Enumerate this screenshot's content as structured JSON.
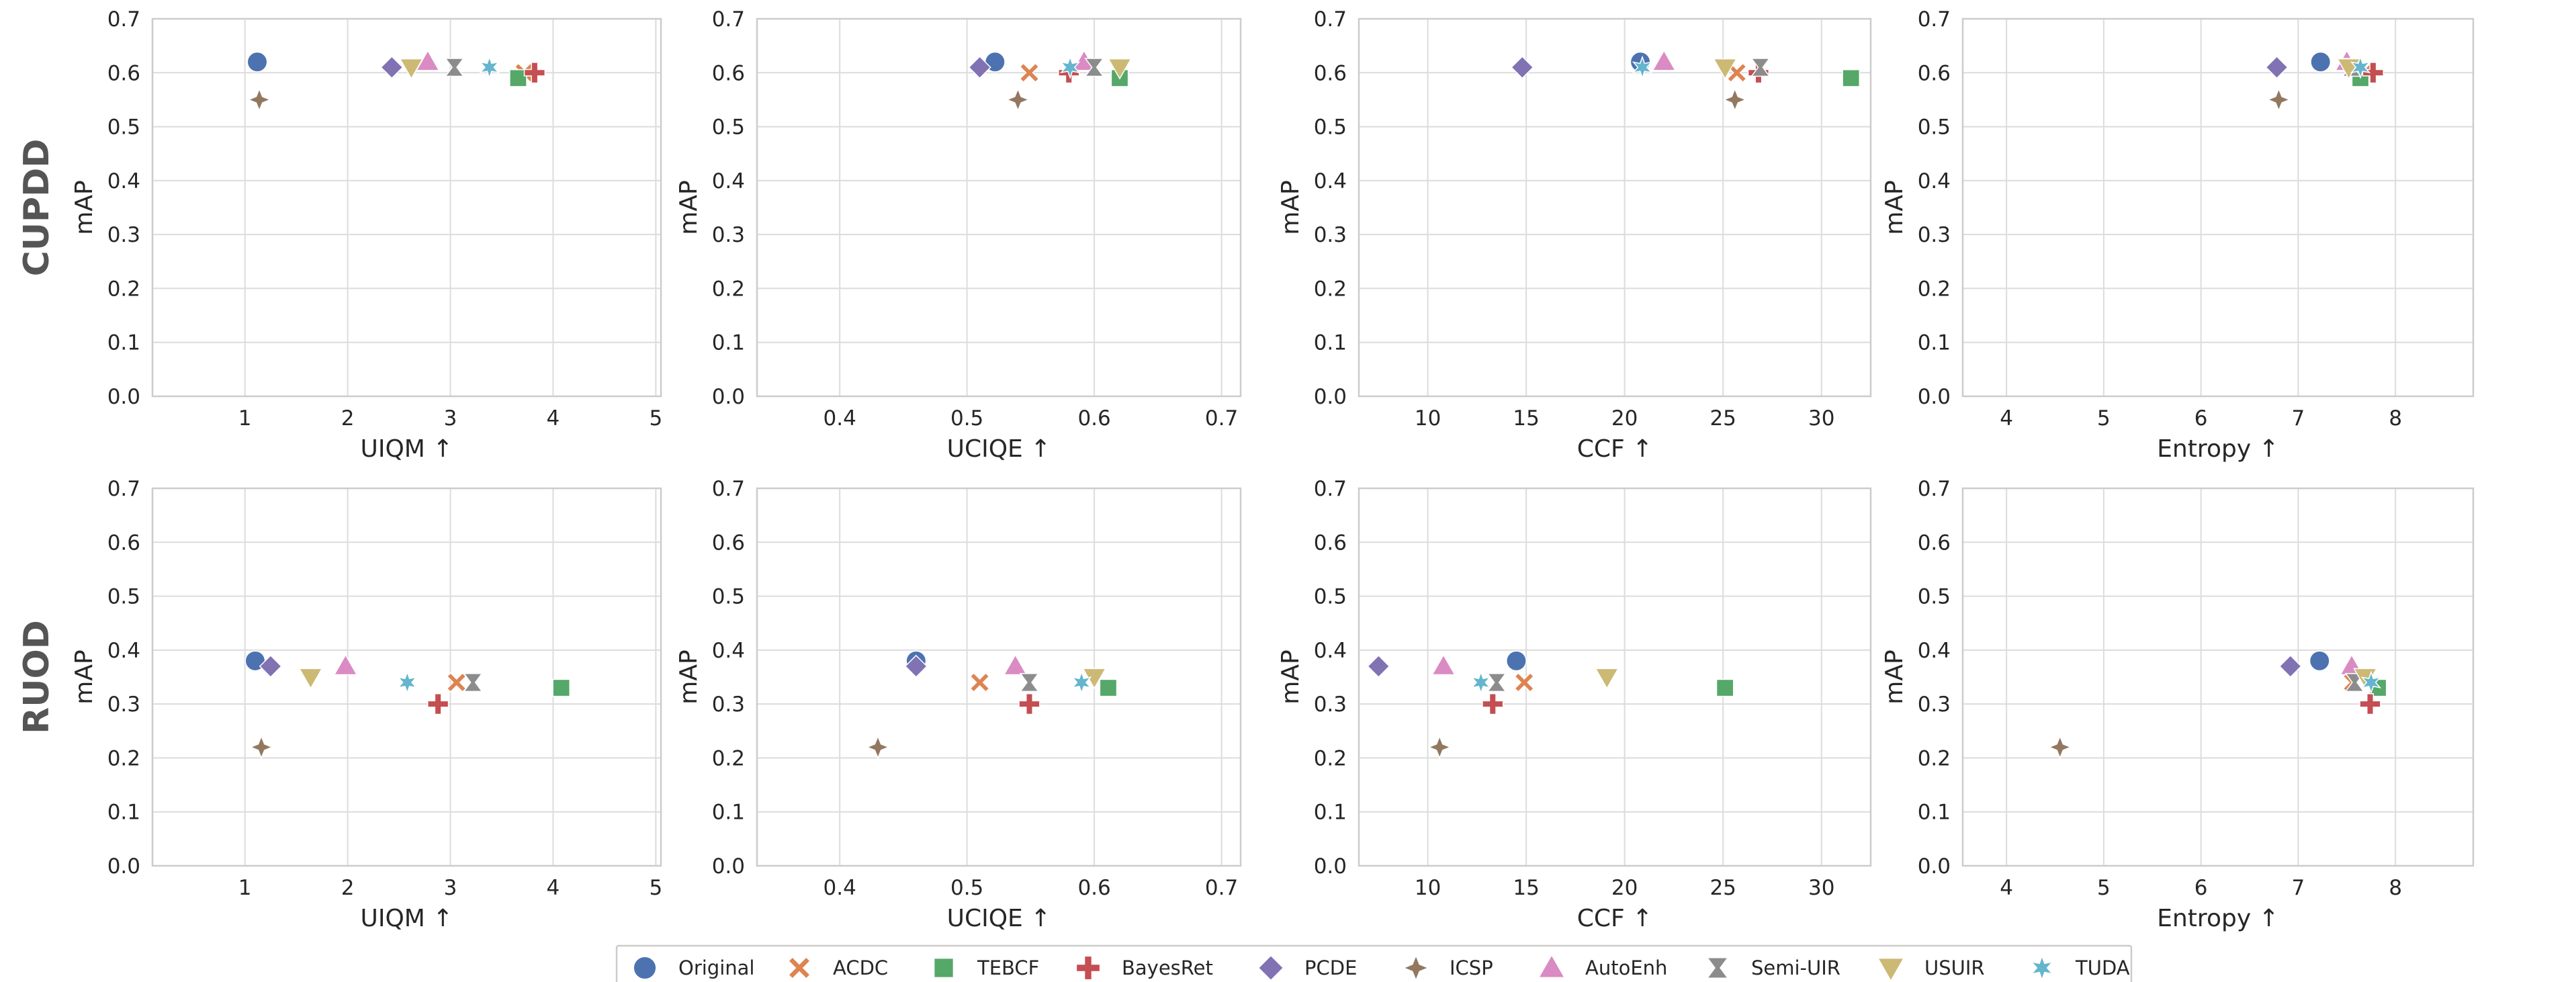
{
  "colors": {
    "grid": "#dcdcdc",
    "frame": "#cccccc",
    "Original": "#4c72b0",
    "ACDC": "#dd8452",
    "TEBCF": "#55a868",
    "BayesRet": "#c44e52",
    "PCDE": "#8172b3",
    "ICSP": "#937860",
    "AutoEnh": "#da8bc3",
    "Semi-UIR": "#8c8c8c",
    "USUIR": "#ccb974",
    "TUDA": "#64b5cd"
  },
  "methods": [
    {
      "name": "Original",
      "marker": "circle"
    },
    {
      "name": "ACDC",
      "marker": "x"
    },
    {
      "name": "TEBCF",
      "marker": "square"
    },
    {
      "name": "BayesRet",
      "marker": "plus"
    },
    {
      "name": "PCDE",
      "marker": "diamond"
    },
    {
      "name": "ICSP",
      "marker": "star4"
    },
    {
      "name": "AutoEnh",
      "marker": "triangle-up"
    },
    {
      "name": "Semi-UIR",
      "marker": "hourglass"
    },
    {
      "name": "USUIR",
      "marker": "triangle-down"
    },
    {
      "name": "TUDA",
      "marker": "star6"
    }
  ],
  "rows": [
    "CUPDD",
    "RUOD"
  ],
  "metrics": [
    {
      "key": "UIQM",
      "xlabel": "UIQM ↑",
      "xlim": [
        0.1,
        5.05
      ],
      "xticks": [
        1,
        2,
        3,
        4,
        5
      ],
      "xtick_labels": [
        "1",
        "2",
        "3",
        "4",
        "5"
      ]
    },
    {
      "key": "UCIQE",
      "xlabel": "UCIQE ↑",
      "xlim": [
        0.335,
        0.715
      ],
      "xticks": [
        0.4,
        0.5,
        0.6,
        0.7
      ],
      "xtick_labels": [
        "0.4",
        "0.5",
        "0.6",
        "0.7"
      ]
    },
    {
      "key": "CCF",
      "xlabel": "CCF ↑",
      "xlim": [
        6.5,
        32.5
      ],
      "xticks": [
        10,
        15,
        20,
        25,
        30
      ],
      "xtick_labels": [
        "10",
        "15",
        "20",
        "25",
        "30"
      ]
    },
    {
      "key": "Entropy",
      "xlabel": "Entropy ↑",
      "xlim": [
        3.55,
        8.8
      ],
      "xticks": [
        4,
        5,
        6,
        7,
        8
      ],
      "xtick_labels": [
        "4",
        "5",
        "6",
        "7",
        "8"
      ]
    }
  ],
  "legend_labels": [
    "Original",
    "ACDC",
    "TEBCF",
    "BayesRet",
    "PCDE",
    "ICSP",
    "AutoEnh",
    "Semi-UIR",
    "USUIR",
    "TUDA"
  ],
  "chart_data": {
    "type": "scatter",
    "ylabel": "mAP",
    "ylim": [
      0,
      0.7
    ],
    "yticks": [
      0.0,
      0.1,
      0.2,
      0.3,
      0.4,
      0.5,
      0.6,
      0.7
    ],
    "ytick_labels": [
      "0.0",
      "0.1",
      "0.2",
      "0.3",
      "0.4",
      "0.5",
      "0.6",
      "0.7"
    ],
    "grid": true,
    "legend_position": "bottom-center",
    "panels": [
      {
        "row": "CUPDD",
        "metric": "UIQM",
        "points": [
          {
            "method": "Original",
            "x": 1.12,
            "y": 0.62
          },
          {
            "method": "ACDC",
            "x": 3.72,
            "y": 0.6
          },
          {
            "method": "TEBCF",
            "x": 3.66,
            "y": 0.59
          },
          {
            "method": "BayesRet",
            "x": 3.82,
            "y": 0.6
          },
          {
            "method": "PCDE",
            "x": 2.43,
            "y": 0.61
          },
          {
            "method": "ICSP",
            "x": 1.14,
            "y": 0.55
          },
          {
            "method": "AutoEnh",
            "x": 2.78,
            "y": 0.62
          },
          {
            "method": "Semi-UIR",
            "x": 3.04,
            "y": 0.61
          },
          {
            "method": "USUIR",
            "x": 2.62,
            "y": 0.61
          },
          {
            "method": "TUDA",
            "x": 3.38,
            "y": 0.61
          }
        ]
      },
      {
        "row": "CUPDD",
        "metric": "UCIQE",
        "points": [
          {
            "method": "Original",
            "x": 0.522,
            "y": 0.62
          },
          {
            "method": "ACDC",
            "x": 0.549,
            "y": 0.6
          },
          {
            "method": "TEBCF",
            "x": 0.62,
            "y": 0.59
          },
          {
            "method": "BayesRet",
            "x": 0.58,
            "y": 0.6
          },
          {
            "method": "PCDE",
            "x": 0.51,
            "y": 0.61
          },
          {
            "method": "ICSP",
            "x": 0.54,
            "y": 0.55
          },
          {
            "method": "AutoEnh",
            "x": 0.592,
            "y": 0.62
          },
          {
            "method": "Semi-UIR",
            "x": 0.6,
            "y": 0.61
          },
          {
            "method": "USUIR",
            "x": 0.62,
            "y": 0.61
          },
          {
            "method": "TUDA",
            "x": 0.581,
            "y": 0.61
          }
        ]
      },
      {
        "row": "CUPDD",
        "metric": "CCF",
        "points": [
          {
            "method": "Original",
            "x": 20.8,
            "y": 0.62
          },
          {
            "method": "ACDC",
            "x": 25.7,
            "y": 0.6
          },
          {
            "method": "TEBCF",
            "x": 31.5,
            "y": 0.59
          },
          {
            "method": "BayesRet",
            "x": 26.8,
            "y": 0.6
          },
          {
            "method": "PCDE",
            "x": 14.8,
            "y": 0.61
          },
          {
            "method": "ICSP",
            "x": 25.6,
            "y": 0.55
          },
          {
            "method": "AutoEnh",
            "x": 22.0,
            "y": 0.62
          },
          {
            "method": "Semi-UIR",
            "x": 26.9,
            "y": 0.61
          },
          {
            "method": "USUIR",
            "x": 25.1,
            "y": 0.61
          },
          {
            "method": "TUDA",
            "x": 20.9,
            "y": 0.61
          }
        ]
      },
      {
        "row": "CUPDD",
        "metric": "Entropy",
        "points": [
          {
            "method": "Original",
            "x": 7.23,
            "y": 0.62
          },
          {
            "method": "ACDC",
            "x": 7.68,
            "y": 0.6
          },
          {
            "method": "TEBCF",
            "x": 7.64,
            "y": 0.59
          },
          {
            "method": "BayesRet",
            "x": 7.77,
            "y": 0.6
          },
          {
            "method": "PCDE",
            "x": 6.78,
            "y": 0.61
          },
          {
            "method": "ICSP",
            "x": 6.8,
            "y": 0.55
          },
          {
            "method": "AutoEnh",
            "x": 7.5,
            "y": 0.62
          },
          {
            "method": "Semi-UIR",
            "x": 7.55,
            "y": 0.61
          },
          {
            "method": "USUIR",
            "x": 7.52,
            "y": 0.61
          },
          {
            "method": "TUDA",
            "x": 7.64,
            "y": 0.61
          }
        ]
      },
      {
        "row": "RUOD",
        "metric": "UIQM",
        "points": [
          {
            "method": "Original",
            "x": 1.1,
            "y": 0.38
          },
          {
            "method": "ACDC",
            "x": 3.06,
            "y": 0.34
          },
          {
            "method": "TEBCF",
            "x": 4.08,
            "y": 0.33
          },
          {
            "method": "BayesRet",
            "x": 2.88,
            "y": 0.3
          },
          {
            "method": "PCDE",
            "x": 1.25,
            "y": 0.37
          },
          {
            "method": "ICSP",
            "x": 1.16,
            "y": 0.22
          },
          {
            "method": "AutoEnh",
            "x": 1.98,
            "y": 0.37
          },
          {
            "method": "Semi-UIR",
            "x": 3.22,
            "y": 0.34
          },
          {
            "method": "USUIR",
            "x": 1.64,
            "y": 0.35
          },
          {
            "method": "TUDA",
            "x": 2.58,
            "y": 0.34
          }
        ]
      },
      {
        "row": "RUOD",
        "metric": "UCIQE",
        "points": [
          {
            "method": "Original",
            "x": 0.46,
            "y": 0.38
          },
          {
            "method": "ACDC",
            "x": 0.51,
            "y": 0.34
          },
          {
            "method": "TEBCF",
            "x": 0.611,
            "y": 0.33
          },
          {
            "method": "BayesRet",
            "x": 0.549,
            "y": 0.3
          },
          {
            "method": "PCDE",
            "x": 0.46,
            "y": 0.37
          },
          {
            "method": "ICSP",
            "x": 0.43,
            "y": 0.22
          },
          {
            "method": "AutoEnh",
            "x": 0.538,
            "y": 0.37
          },
          {
            "method": "Semi-UIR",
            "x": 0.549,
            "y": 0.34
          },
          {
            "method": "USUIR",
            "x": 0.6,
            "y": 0.35
          },
          {
            "method": "TUDA",
            "x": 0.59,
            "y": 0.34
          }
        ]
      },
      {
        "row": "RUOD",
        "metric": "CCF",
        "points": [
          {
            "method": "Original",
            "x": 14.5,
            "y": 0.38
          },
          {
            "method": "ACDC",
            "x": 14.9,
            "y": 0.34
          },
          {
            "method": "TEBCF",
            "x": 25.1,
            "y": 0.33
          },
          {
            "method": "BayesRet",
            "x": 13.3,
            "y": 0.3
          },
          {
            "method": "PCDE",
            "x": 7.5,
            "y": 0.37
          },
          {
            "method": "ICSP",
            "x": 10.6,
            "y": 0.22
          },
          {
            "method": "AutoEnh",
            "x": 10.8,
            "y": 0.37
          },
          {
            "method": "Semi-UIR",
            "x": 13.5,
            "y": 0.34
          },
          {
            "method": "USUIR",
            "x": 19.1,
            "y": 0.35
          },
          {
            "method": "TUDA",
            "x": 12.7,
            "y": 0.34
          }
        ]
      },
      {
        "row": "RUOD",
        "metric": "Entropy",
        "points": [
          {
            "method": "Original",
            "x": 7.22,
            "y": 0.38
          },
          {
            "method": "ACDC",
            "x": 7.56,
            "y": 0.34
          },
          {
            "method": "TEBCF",
            "x": 7.82,
            "y": 0.33
          },
          {
            "method": "BayesRet",
            "x": 7.74,
            "y": 0.3
          },
          {
            "method": "PCDE",
            "x": 6.92,
            "y": 0.37
          },
          {
            "method": "ICSP",
            "x": 4.55,
            "y": 0.22
          },
          {
            "method": "AutoEnh",
            "x": 7.55,
            "y": 0.37
          },
          {
            "method": "Semi-UIR",
            "x": 7.58,
            "y": 0.34
          },
          {
            "method": "USUIR",
            "x": 7.69,
            "y": 0.35
          },
          {
            "method": "TUDA",
            "x": 7.75,
            "y": 0.34
          }
        ]
      }
    ]
  }
}
